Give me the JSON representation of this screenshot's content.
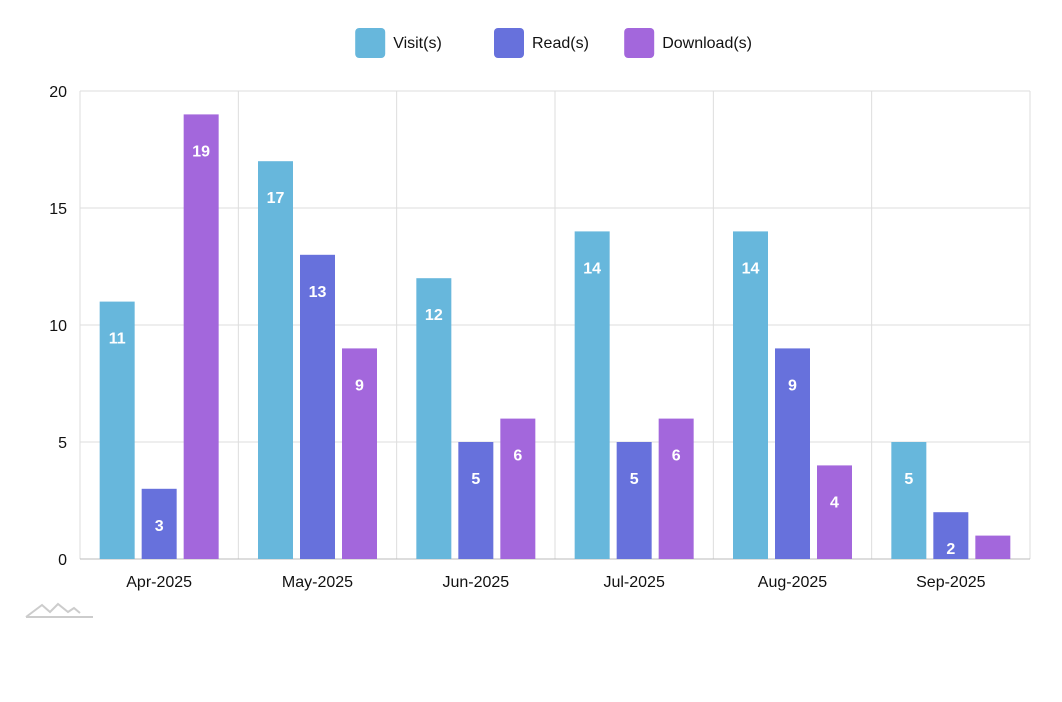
{
  "chart_data": {
    "type": "bar",
    "categories": [
      "Apr-2025",
      "May-2025",
      "Jun-2025",
      "Jul-2025",
      "Aug-2025",
      "Sep-2025"
    ],
    "series": [
      {
        "name": "Visit(s)",
        "color": "#67b7dc",
        "values": [
          11,
          17,
          12,
          14,
          14,
          5
        ]
      },
      {
        "name": "Read(s)",
        "color": "#6771dc",
        "values": [
          3,
          13,
          5,
          5,
          9,
          2
        ]
      },
      {
        "name": "Download(s)",
        "color": "#a367dc",
        "values": [
          19,
          9,
          6,
          6,
          4,
          1
        ]
      }
    ],
    "ylim": [
      0,
      20
    ],
    "yticks": [
      0,
      5,
      10,
      15,
      20
    ],
    "grid": true,
    "legend_position": "top-center",
    "data_labels": "inside-top"
  },
  "watermark": {
    "icon": "amcharts-logo-icon"
  }
}
